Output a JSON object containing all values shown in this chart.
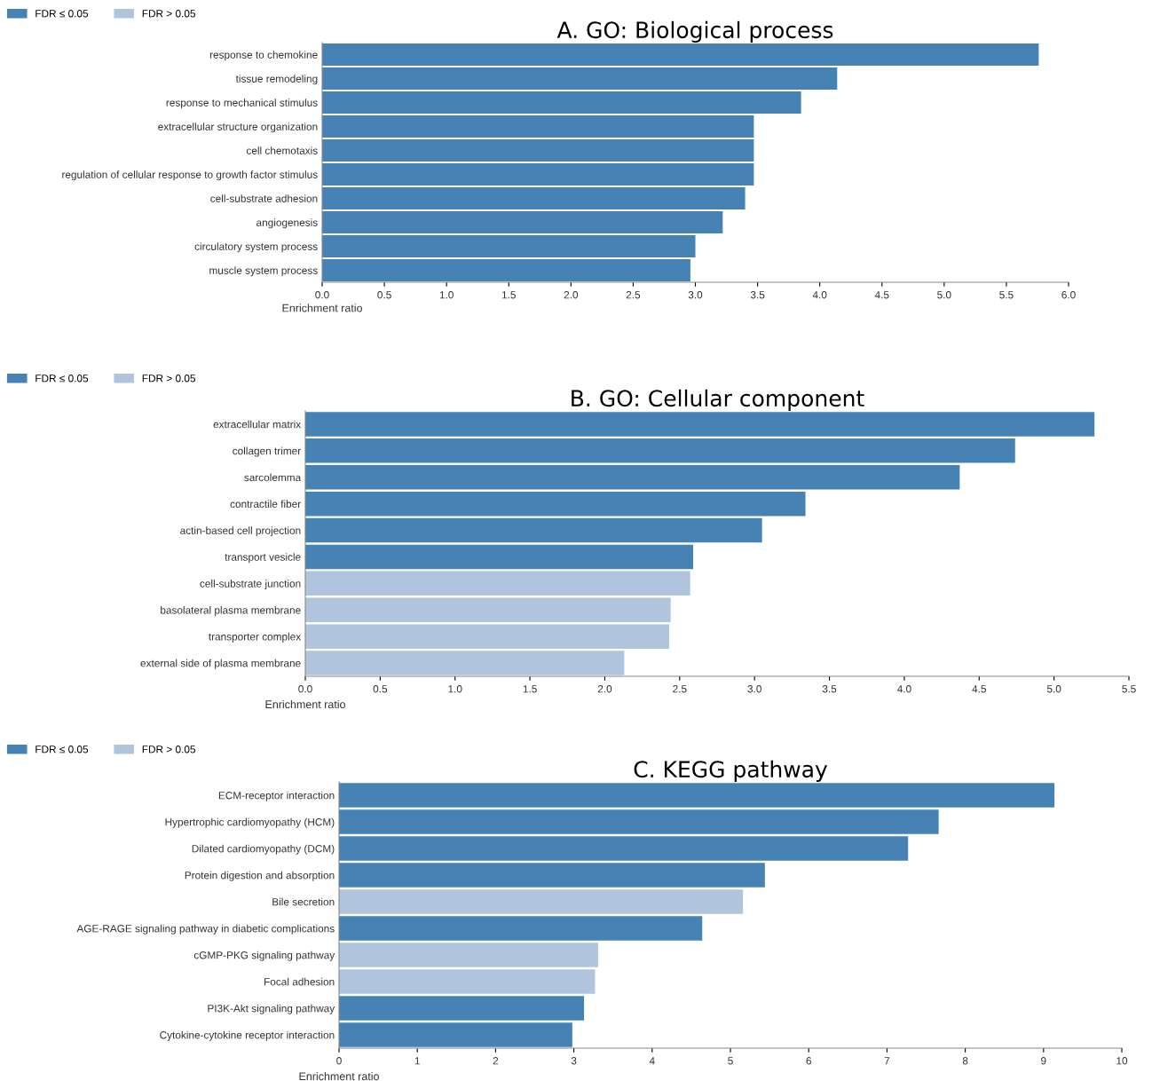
{
  "chart_data": [
    {
      "type": "bar",
      "orientation": "horizontal",
      "title": "A. GO: Biological process",
      "xlabel": "Enrichment ratio",
      "categories": [
        "response to chemokine",
        "tissue remodeling",
        "response to mechanical stimulus",
        "extracellular structure organization",
        "cell chemotaxis",
        "regulation of cellular response to growth factor stimulus",
        "cell-substrate adhesion",
        "angiogenesis",
        "circulatory system process",
        "muscle system process"
      ],
      "series": [
        {
          "name": "FDR ≤ 0.05",
          "color": "#4682b4",
          "values": [
            5.76,
            4.14,
            3.85,
            3.47,
            3.47,
            3.47,
            3.4,
            3.22,
            3.0,
            2.96
          ]
        },
        {
          "name": "FDR > 0.05",
          "color": "#b0c4de",
          "values": [
            null,
            null,
            null,
            null,
            null,
            null,
            null,
            null,
            null,
            null
          ]
        }
      ],
      "xlim": [
        0,
        6
      ],
      "xticks": [
        {
          "value": 0,
          "label": "0.0"
        },
        0.5,
        {
          "value": 1,
          "label": "1.0"
        },
        1.5,
        {
          "value": 2,
          "label": "2.0"
        },
        2.5,
        {
          "value": 3,
          "label": "3.0"
        },
        3.5,
        {
          "value": 4,
          "label": "4.0"
        },
        4.5,
        {
          "value": 5,
          "label": "5.0"
        },
        5.5,
        {
          "value": 6,
          "label": "6.0"
        }
      ],
      "legend": "top left",
      "grid": false
    },
    {
      "type": "bar",
      "orientation": "horizontal",
      "title": "B. GO: Cellular component",
      "xlabel": "Enrichment ratio",
      "categories": [
        "extracellular matrix",
        "collagen trimer",
        "sarcolemma",
        "contractile fiber",
        "actin-based cell projection",
        "transport vesicle",
        "cell-substrate junction",
        "basolateral plasma membrane",
        "transporter complex",
        "external side of plasma membrane"
      ],
      "series": [
        {
          "name": "FDR ≤ 0.05",
          "color": "#4682b4",
          "values": [
            5.27,
            4.74,
            4.37,
            3.34,
            3.05,
            2.59,
            null,
            null,
            null,
            null
          ]
        },
        {
          "name": "FDR > 0.05",
          "color": "#b0c4de",
          "values": [
            null,
            null,
            null,
            null,
            null,
            null,
            2.57,
            2.44,
            2.43,
            2.13
          ]
        }
      ],
      "xlim": [
        0,
        5.5
      ],
      "xticks": [
        {
          "value": 0,
          "label": "0.0"
        },
        0.5,
        {
          "value": 1,
          "label": "1.0"
        },
        1.5,
        {
          "value": 2,
          "label": "2.0"
        },
        2.5,
        {
          "value": 3,
          "label": "3.0"
        },
        3.5,
        {
          "value": 4,
          "label": "4.0"
        },
        4.5,
        {
          "value": 5,
          "label": "5.0"
        },
        5.5
      ],
      "legend": "top left",
      "grid": false
    },
    {
      "type": "bar",
      "orientation": "horizontal",
      "title": "C. KEGG pathway",
      "xlabel": "Enrichment ratio",
      "categories": [
        "ECM-receptor interaction",
        "Hypertrophic cardiomyopathy (HCM)",
        "Dilated cardiomyopathy (DCM)",
        "Protein digestion and absorption",
        "Bile secretion",
        "AGE-RAGE signaling pathway in diabetic complications",
        "cGMP-PKG signaling pathway",
        "Focal adhesion",
        "PI3K-Akt signaling pathway",
        "Cytokine-cytokine receptor interaction"
      ],
      "series": [
        {
          "name": "FDR ≤ 0.05",
          "color": "#4682b4",
          "values": [
            9.14,
            7.66,
            7.27,
            5.44,
            null,
            4.64,
            null,
            null,
            3.13,
            2.98
          ]
        },
        {
          "name": "FDR > 0.05",
          "color": "#b0c4de",
          "values": [
            null,
            null,
            null,
            null,
            5.16,
            null,
            3.31,
            3.27,
            null,
            null
          ]
        }
      ],
      "xlim": [
        0,
        10
      ],
      "xticks": [
        0,
        1,
        2,
        3,
        4,
        5,
        6,
        7,
        8,
        9,
        10
      ],
      "legend": "top left",
      "grid": false
    }
  ]
}
